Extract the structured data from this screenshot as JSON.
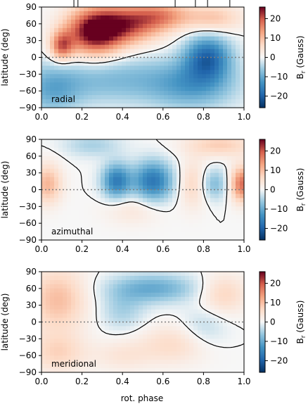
{
  "chart_data": {
    "type": "heatmap",
    "colormap": "RdBu_r",
    "shared_x_axis_label": "rot. phase",
    "x_range": [
      0.0,
      1.0
    ],
    "x_ticks": [
      "0.0",
      "0.2",
      "0.4",
      "0.6",
      "0.8",
      "1.0"
    ],
    "y_label": "latitude (deg)",
    "y_range": [
      -90,
      90
    ],
    "y_ticks": [
      "90",
      "60",
      "30",
      "0",
      "−30",
      "−60",
      "−90"
    ],
    "colorbar": {
      "range": [
        -26,
        26
      ],
      "ticks": [
        "20",
        "10",
        "0",
        "−10",
        "−20"
      ],
      "label_main": "B",
      "label_sub": "r",
      "label_unit": "(Gauss)"
    },
    "observation_phases": [
      0.16,
      0.18,
      0.66,
      0.76,
      0.82,
      0.93
    ],
    "panels": [
      {
        "label": "radial",
        "features": [
          {
            "x": 0.1,
            "y": 20,
            "value": 17,
            "sx": 0.04,
            "sy": 18
          },
          {
            "x": 0.26,
            "y": 45,
            "value": 26,
            "sx": 0.1,
            "sy": 30
          },
          {
            "x": 0.43,
            "y": 60,
            "value": 18,
            "sx": 0.12,
            "sy": 25
          },
          {
            "x": 0.6,
            "y": 75,
            "value": 12,
            "sx": 0.1,
            "sy": 18
          },
          {
            "x": 0.85,
            "y": 70,
            "value": 9,
            "sx": 0.1,
            "sy": 18
          },
          {
            "x": 0.82,
            "y": 0,
            "value": -18,
            "sx": 0.08,
            "sy": 28
          },
          {
            "x": 0.35,
            "y": -40,
            "value": -8,
            "sx": 0.25,
            "sy": 30
          },
          {
            "x": 0.75,
            "y": -50,
            "value": -10,
            "sx": 0.15,
            "sy": 30
          },
          {
            "x": 0.05,
            "y": -60,
            "value": -8,
            "sx": 0.1,
            "sy": 30
          }
        ]
      },
      {
        "label": "azimuthal",
        "features": [
          {
            "x": 0.37,
            "y": 15,
            "value": -16,
            "sx": 0.05,
            "sy": 22
          },
          {
            "x": 0.55,
            "y": 15,
            "value": -17,
            "sx": 0.07,
            "sy": 25
          },
          {
            "x": 0.03,
            "y": 10,
            "value": 11,
            "sx": 0.05,
            "sy": 25
          },
          {
            "x": 0.99,
            "y": 10,
            "value": 18,
            "sx": 0.04,
            "sy": 22
          },
          {
            "x": 0.75,
            "y": 10,
            "value": 7,
            "sx": 0.05,
            "sy": 30
          },
          {
            "x": 0.85,
            "y": 10,
            "value": -8,
            "sx": 0.05,
            "sy": 20
          },
          {
            "x": 0.88,
            "y": 80,
            "value": 8,
            "sx": 0.12,
            "sy": 15
          },
          {
            "x": 0.25,
            "y": 80,
            "value": -5,
            "sx": 0.1,
            "sy": 15
          },
          {
            "x": 0.45,
            "y": -35,
            "value": 4,
            "sx": 0.1,
            "sy": 20
          }
        ]
      },
      {
        "label": "meridional",
        "features": [
          {
            "x": 0.08,
            "y": 40,
            "value": 10,
            "sx": 0.1,
            "sy": 40
          },
          {
            "x": 0.08,
            "y": -55,
            "value": 7,
            "sx": 0.1,
            "sy": 25
          },
          {
            "x": 0.55,
            "y": 60,
            "value": -10,
            "sx": 0.15,
            "sy": 18
          },
          {
            "x": 0.4,
            "y": 20,
            "value": -5,
            "sx": 0.08,
            "sy": 25
          },
          {
            "x": 0.65,
            "y": -40,
            "value": 6,
            "sx": 0.12,
            "sy": 25
          },
          {
            "x": 0.4,
            "y": -60,
            "value": 4,
            "sx": 0.1,
            "sy": 20
          },
          {
            "x": 0.9,
            "y": 50,
            "value": 7,
            "sx": 0.08,
            "sy": 25
          },
          {
            "x": 0.8,
            "y": -10,
            "value": -4,
            "sx": 0.08,
            "sy": 25
          }
        ]
      }
    ]
  }
}
